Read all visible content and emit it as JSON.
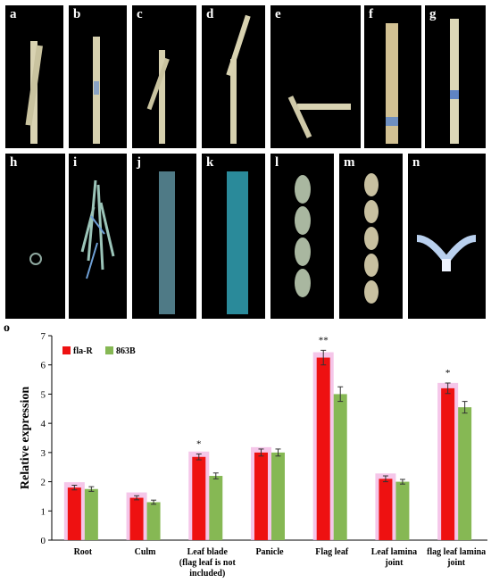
{
  "figure": {
    "panel_labels": [
      "a",
      "b",
      "c",
      "d",
      "e",
      "f",
      "g",
      "h",
      "i",
      "j",
      "k",
      "l",
      "m",
      "n"
    ],
    "chart_label": "o"
  },
  "chart_data": {
    "type": "bar",
    "ylabel": "Relative expression",
    "xlabel": "",
    "ylim": [
      0,
      7
    ],
    "yticks": [
      0,
      1,
      2,
      3,
      4,
      5,
      6,
      7
    ],
    "grid": false,
    "legend_position": "top-left",
    "categories": [
      "Root",
      "Culm",
      "Leaf blade\n(flag leaf is not\nincluded)",
      "Panicle",
      "Flag leaf",
      "Leaf lamina\njoint",
      "flag leaf lamina\njoint"
    ],
    "series": [
      {
        "name": "fla-R",
        "color": "#ee1111",
        "values": [
          1.8,
          1.45,
          2.85,
          3.0,
          6.25,
          2.1,
          5.2
        ],
        "errors": [
          0.08,
          0.07,
          0.1,
          0.12,
          0.25,
          0.1,
          0.18
        ]
      },
      {
        "name": "863B",
        "color": "#86b854",
        "values": [
          1.75,
          1.3,
          2.2,
          3.0,
          5.0,
          2.0,
          4.55
        ],
        "errors": [
          0.08,
          0.07,
          0.1,
          0.12,
          0.25,
          0.08,
          0.2
        ]
      }
    ],
    "annotations": [
      "",
      "",
      "*",
      "",
      "**",
      "",
      "*"
    ],
    "highlight_color": "#f2b8e4"
  }
}
